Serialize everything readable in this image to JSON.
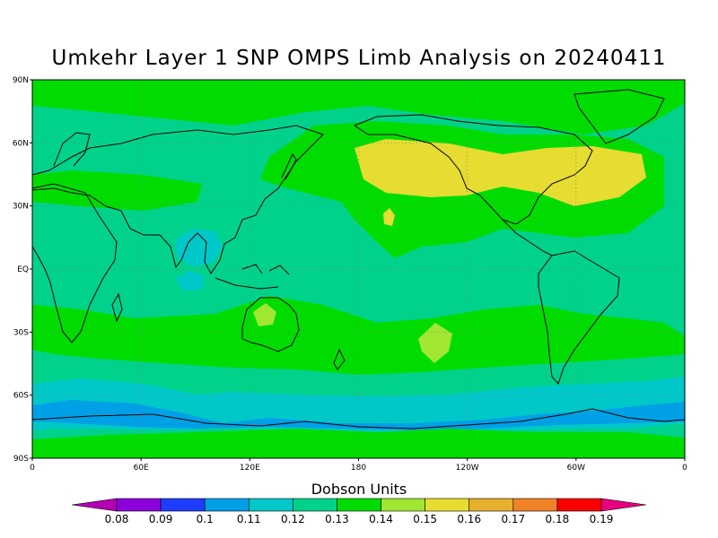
{
  "title": "Umkehr Layer 1 SNP OMPS Limb Analysis on 20240411",
  "map": {
    "projection": "cylindrical equidistant",
    "lon_range": [
      0,
      360
    ],
    "lat_range": [
      -90,
      90
    ],
    "lat_tick_labels": [
      "90N",
      "60N",
      "30N",
      "EQ",
      "30S",
      "60S",
      "90S"
    ],
    "lon_tick_labels": [
      "0",
      "60E",
      "120E",
      "180",
      "120W",
      "60W",
      "0"
    ],
    "grid": "dotted"
  },
  "colorbar": {
    "title": "Dobson Units",
    "labels": [
      "0.08",
      "0.09",
      "0.1",
      "0.11",
      "0.12",
      "0.13",
      "0.14",
      "0.15",
      "0.16",
      "0.17",
      "0.18",
      "0.19"
    ],
    "colors": [
      "#b400b4",
      "#8c00dc",
      "#1e3cff",
      "#00a0e6",
      "#00c8c8",
      "#00d28c",
      "#00dc00",
      "#a0e632",
      "#e6dc32",
      "#e6af2d",
      "#f08228",
      "#fa0000",
      "#e6007d"
    ]
  },
  "field": {
    "background_value": 0.12,
    "regions": [
      {
        "name": "arctic",
        "value": 0.13
      },
      {
        "name": "north-pacific-atlantic-band",
        "value": 0.13
      },
      {
        "name": "north-america-pacific-max",
        "value": 0.15
      },
      {
        "name": "tropical-indian-ocean",
        "value": 0.11
      },
      {
        "name": "subtropical-south-band",
        "value": 0.13
      },
      {
        "name": "south-pacific-max",
        "value": 0.14
      },
      {
        "name": "australia-max",
        "value": 0.14
      },
      {
        "name": "southern-ocean-min",
        "value": 0.11
      },
      {
        "name": "antarctic-circumpolar-min",
        "value": 0.1
      },
      {
        "name": "antarctica",
        "value": 0.13
      }
    ]
  }
}
